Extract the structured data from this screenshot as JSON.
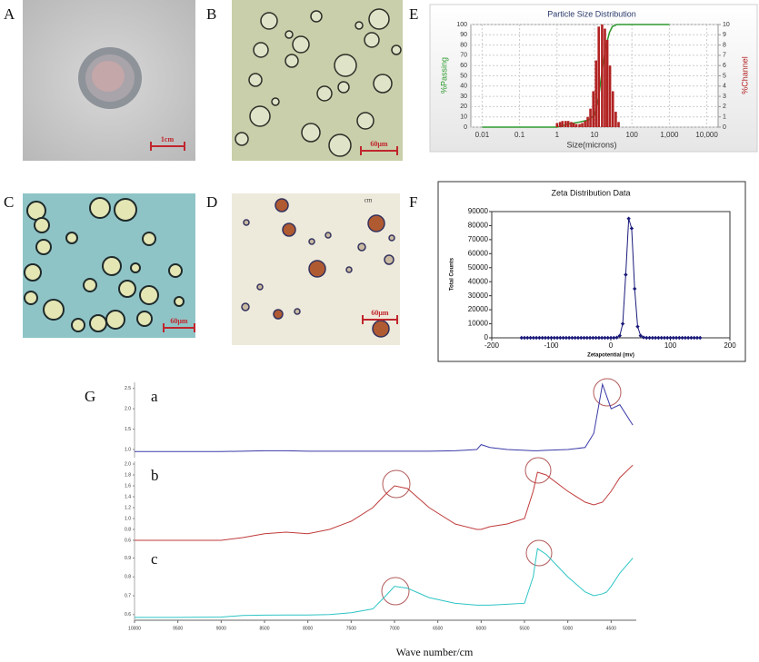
{
  "figure": {
    "panel_labels": [
      "A",
      "B",
      "C",
      "D",
      "E",
      "F",
      "G"
    ],
    "scale_bars": {
      "A": "1cm",
      "B": "60μm",
      "C": "60μm",
      "D": "60μm"
    },
    "d_corner": "cm"
  },
  "chart_data": [
    {
      "type": "combo",
      "title": "Particle Size Distribution",
      "xlabel": "Size(microns)",
      "log_x": true,
      "grid": true,
      "xlim": [
        0.005,
        20000
      ],
      "xticks": [
        0.01,
        0.1,
        1,
        10,
        100,
        {
          "value": 1000,
          "label": "1,000"
        },
        {
          "value": 10000,
          "label": "10,000"
        }
      ],
      "ylim": [
        0,
        100
      ],
      "yticks": [
        0,
        10,
        20,
        30,
        40,
        50,
        60,
        70,
        80,
        90,
        100
      ],
      "y2lim": [
        0,
        10
      ],
      "y2ticks": [
        0,
        1,
        2,
        3,
        4,
        5,
        6,
        7,
        8,
        9,
        10
      ],
      "series": [
        {
          "name": "%Passing",
          "type": "line",
          "color": "#2e9a2e",
          "x": [
            0.01,
            1,
            2,
            4,
            7,
            10,
            13,
            16,
            20,
            25,
            30,
            40,
            100,
            1000
          ],
          "values": [
            0,
            0,
            3,
            5,
            7,
            12,
            30,
            55,
            78,
            92,
            98,
            100,
            100,
            100
          ]
        },
        {
          "name": "%Channel",
          "type": "bar",
          "axis": "y2",
          "color": "#b22222",
          "x": [
            1.0,
            1.2,
            1.4,
            1.7,
            2.0,
            2.4,
            2.8,
            3.3,
            4.0,
            4.7,
            5.6,
            6.6,
            7.8,
            9.3,
            11,
            13,
            16,
            19,
            22,
            26,
            31,
            37,
            44
          ],
          "values": [
            0.4,
            0.5,
            0.6,
            0.6,
            0.6,
            0.5,
            0.4,
            0.3,
            0.3,
            0.4,
            0.6,
            1.0,
            1.8,
            3.5,
            6.5,
            9.8,
            10,
            9.6,
            8.5,
            6.0,
            3.5,
            1.5,
            0.5
          ]
        }
      ]
    },
    {
      "type": "line",
      "title": "Zeta Distribution Data",
      "xlabel": "Zetapotential (mv)",
      "ylabel": "Total Counts",
      "color": "#1a1a7a",
      "xlim": [
        -200,
        200
      ],
      "xticks": [
        -200,
        -100,
        0,
        100,
        200
      ],
      "ylim": [
        0,
        90000
      ],
      "yticks": [
        0,
        10000,
        20000,
        30000,
        40000,
        50000,
        60000,
        70000,
        80000,
        90000
      ],
      "x": [
        -150,
        -145,
        -140,
        -135,
        -130,
        -125,
        -120,
        -115,
        -110,
        -105,
        -100,
        -95,
        -90,
        -85,
        -80,
        -75,
        -70,
        -65,
        -60,
        -55,
        -50,
        -45,
        -40,
        -35,
        -30,
        -25,
        -20,
        -15,
        -10,
        -5,
        0,
        5,
        10,
        15,
        20,
        25,
        30,
        35,
        40,
        45,
        50,
        55,
        60,
        65,
        70,
        75,
        80,
        85,
        90,
        95,
        100,
        105,
        110,
        115,
        120,
        125,
        130,
        135,
        140,
        145,
        150
      ],
      "values": [
        0,
        0,
        0,
        0,
        0,
        0,
        0,
        0,
        0,
        0,
        0,
        0,
        0,
        0,
        0,
        0,
        0,
        0,
        0,
        0,
        0,
        0,
        0,
        0,
        0,
        0,
        0,
        0,
        0,
        0,
        0,
        0,
        200,
        1500,
        10000,
        45000,
        85000,
        78000,
        35000,
        8000,
        1500,
        300,
        0,
        0,
        0,
        0,
        0,
        0,
        0,
        0,
        0,
        0,
        0,
        0,
        0,
        0,
        0,
        0,
        0,
        0,
        0
      ]
    },
    {
      "type": "stacked-spectra",
      "xlabel": "Wave number/cm",
      "xlim": [
        10000,
        4000
      ],
      "xticks": [
        10000,
        9500,
        9000,
        8500,
        8000,
        7500,
        7000,
        6500,
        6000,
        5500,
        5000,
        4500
      ],
      "x": [
        10000,
        9500,
        9000,
        8750,
        8500,
        8250,
        8000,
        7750,
        7500,
        7250,
        7100,
        7000,
        6850,
        6600,
        6300,
        6050,
        6000,
        5900,
        5700,
        5500,
        5400,
        5350,
        5250,
        5000,
        4800,
        4700,
        4600,
        4550,
        4500,
        4400,
        4250
      ],
      "series": [
        {
          "name": "a",
          "color": "#3a3aa8",
          "ylim": [
            0.8,
            2.65
          ],
          "yticks": [
            {
              "value": 1.0,
              "label": "1.0"
            },
            1.5,
            {
              "value": 2.0,
              "label": "2.0"
            },
            2.5
          ],
          "values": [
            0.95,
            0.95,
            0.95,
            0.96,
            0.97,
            0.97,
            0.96,
            0.96,
            0.96,
            0.96,
            0.96,
            0.96,
            0.96,
            0.96,
            0.97,
            1.0,
            1.12,
            1.05,
            1.0,
            0.98,
            0.97,
            0.97,
            0.98,
            1.0,
            1.05,
            1.4,
            2.6,
            2.3,
            2.0,
            2.1,
            1.6
          ]
        },
        {
          "name": "b",
          "color": "#c03a3a",
          "ylim": [
            0.5,
            2.05
          ],
          "yticks": [
            0.6,
            0.8,
            {
              "value": 1.0,
              "label": "1.0"
            },
            1.2,
            1.4,
            1.6,
            1.8,
            {
              "value": 2.0,
              "label": "2.0"
            }
          ],
          "values": [
            0.6,
            0.6,
            0.6,
            0.65,
            0.72,
            0.75,
            0.72,
            0.8,
            0.95,
            1.2,
            1.45,
            1.6,
            1.55,
            1.2,
            0.9,
            0.8,
            0.8,
            0.85,
            0.9,
            1.0,
            1.5,
            1.85,
            1.8,
            1.5,
            1.3,
            1.25,
            1.3,
            1.4,
            1.5,
            1.75,
            1.98
          ]
        },
        {
          "name": "c",
          "color": "#2ec4c4",
          "ylim": [
            0.57,
            0.97
          ],
          "yticks": [
            0.6,
            0.7,
            0.8,
            0.9
          ],
          "values": [
            0.585,
            0.585,
            0.587,
            0.595,
            0.597,
            0.598,
            0.598,
            0.6,
            0.61,
            0.63,
            0.7,
            0.75,
            0.74,
            0.69,
            0.66,
            0.65,
            0.65,
            0.65,
            0.655,
            0.66,
            0.8,
            0.95,
            0.92,
            0.8,
            0.72,
            0.7,
            0.71,
            0.72,
            0.75,
            0.82,
            0.9
          ]
        }
      ]
    }
  ]
}
